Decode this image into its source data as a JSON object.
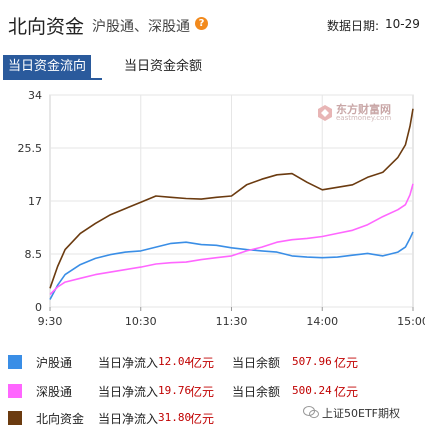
{
  "header": {
    "title": "北向资金",
    "subtitle": "沪股通、深股通",
    "help_glyph": "?",
    "date_label": "数据日期:",
    "date_value": "10-29"
  },
  "tabs": [
    {
      "label": "当日资金流向",
      "active": true
    },
    {
      "label": "当日资金余额",
      "active": false
    }
  ],
  "watermark": {
    "text": "东方财富网",
    "sub": "eastmoney.com",
    "icon": "eastmoney-logo-icon"
  },
  "footer": {
    "text": "上证50ETF期权"
  },
  "legend": [
    {
      "name": "沪股通",
      "inflow_label": "当日净流入",
      "inflow": "12.04",
      "inflow_unit": "亿元",
      "balance_label": "当日余额",
      "balance": "507.96",
      "balance_unit": "亿元",
      "color": "#3a8ee6"
    },
    {
      "name": "深股通",
      "inflow_label": "当日净流入",
      "inflow": "19.76",
      "inflow_unit": "亿元",
      "balance_label": "当日余额",
      "balance": "500.24",
      "balance_unit": "亿元",
      "color": "#ff66ff"
    },
    {
      "name": "北向资金",
      "inflow_label": "当日净流入",
      "inflow": "31.80",
      "inflow_unit": "亿元",
      "balance_label": "当日余额",
      "balance": "",
      "balance_unit": "",
      "color": "#6b3b10"
    }
  ],
  "chart_data": {
    "type": "line",
    "title": "",
    "xlabel": "",
    "ylabel": "",
    "ylim": [
      0,
      34
    ],
    "yticks": [
      34,
      25.5,
      17,
      8.5,
      0
    ],
    "ytick_labels": [
      "34",
      "25.5",
      "17",
      "8.5",
      "0"
    ],
    "xlim": [
      "9:30",
      "15:00"
    ],
    "xticks": [
      "9:30",
      "10:30",
      "11:30",
      "14:00",
      "15:00"
    ],
    "x_axis_note": "lunch break 11:30-13:00 removed; 14:00 sits one hour after 11:30",
    "grid": true,
    "series": [
      {
        "name": "沪股通",
        "color": "#3a8ee6",
        "x": [
          "9:30",
          "9:35",
          "9:40",
          "9:50",
          "10:00",
          "10:10",
          "10:20",
          "10:30",
          "10:40",
          "10:50",
          "11:00",
          "11:10",
          "11:20",
          "11:30",
          "13:10",
          "13:20",
          "13:30",
          "13:40",
          "13:50",
          "14:00",
          "14:10",
          "14:20",
          "14:30",
          "14:40",
          "14:50",
          "14:55",
          "14:58",
          "15:00"
        ],
        "values": [
          1.2,
          3.5,
          5.2,
          6.8,
          7.8,
          8.4,
          8.8,
          9.0,
          9.6,
          10.2,
          10.4,
          10.0,
          9.9,
          9.5,
          9.2,
          9.0,
          8.8,
          8.2,
          8.0,
          7.9,
          8.0,
          8.3,
          8.6,
          8.2,
          8.8,
          9.6,
          11.0,
          12.04
        ]
      },
      {
        "name": "深股通",
        "color": "#ff66ff",
        "x": [
          "9:30",
          "9:35",
          "9:40",
          "9:50",
          "10:00",
          "10:10",
          "10:20",
          "10:30",
          "10:40",
          "10:50",
          "11:00",
          "11:10",
          "11:20",
          "11:30",
          "13:10",
          "13:20",
          "13:30",
          "13:40",
          "13:50",
          "14:00",
          "14:10",
          "14:20",
          "14:30",
          "14:40",
          "14:50",
          "14:55",
          "14:58",
          "15:00"
        ],
        "values": [
          2.0,
          3.2,
          4.0,
          4.6,
          5.2,
          5.6,
          6.0,
          6.4,
          6.9,
          7.1,
          7.2,
          7.6,
          7.9,
          8.2,
          9.0,
          9.6,
          10.4,
          10.8,
          11.0,
          11.3,
          11.8,
          12.3,
          13.2,
          14.5,
          15.6,
          16.4,
          18.0,
          19.76
        ]
      },
      {
        "name": "北向资金",
        "color": "#6b3b10",
        "x": [
          "9:30",
          "9:35",
          "9:40",
          "9:50",
          "10:00",
          "10:10",
          "10:20",
          "10:30",
          "10:40",
          "10:50",
          "11:00",
          "11:10",
          "11:20",
          "11:30",
          "13:10",
          "13:20",
          "13:30",
          "13:40",
          "13:50",
          "14:00",
          "14:10",
          "14:20",
          "14:30",
          "14:40",
          "14:50",
          "14:55",
          "14:58",
          "15:00"
        ],
        "values": [
          3.0,
          6.5,
          9.2,
          11.8,
          13.4,
          14.8,
          15.8,
          16.8,
          17.8,
          17.6,
          17.4,
          17.3,
          17.6,
          17.8,
          19.6,
          20.5,
          21.2,
          21.4,
          20.0,
          18.8,
          19.2,
          19.6,
          20.8,
          21.6,
          24.0,
          26.0,
          29.0,
          31.8
        ]
      }
    ]
  }
}
